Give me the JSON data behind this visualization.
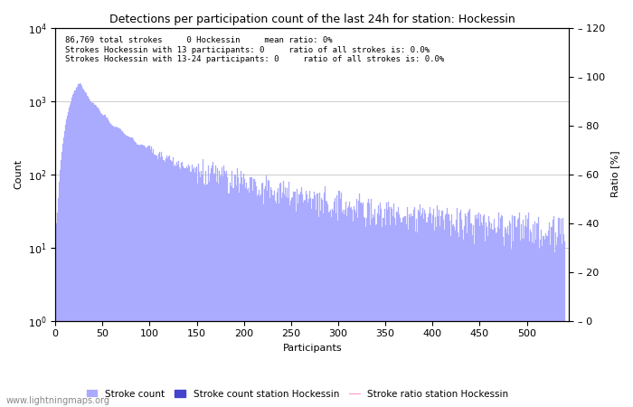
{
  "title": "Detections per participation count of the last 24h for station: Hockessin",
  "xlabel": "Participants",
  "ylabel_left": "Count",
  "ylabel_right": "Ratio [%]",
  "annotation_lines": [
    "86,769 total strokes     0 Hockessin     mean ratio: 0%",
    "Strokes Hockessin with 13 participants: 0     ratio of all strokes is: 0.0%",
    "Strokes Hockessin with 13-24 participants: 0     ratio of all strokes is: 0.0%"
  ],
  "bar_color": "#aaaaff",
  "station_bar_color": "#4444cc",
  "ratio_line_color": "#ff99cc",
  "x_max": 540,
  "ylim_right": [
    0,
    120
  ],
  "right_yticks": [
    0,
    20,
    40,
    60,
    80,
    100,
    120
  ],
  "watermark": "www.lightningmaps.org",
  "legend_labels": [
    "Stroke count",
    "Stroke count station Hockessin",
    "Stroke ratio station Hockessin"
  ]
}
